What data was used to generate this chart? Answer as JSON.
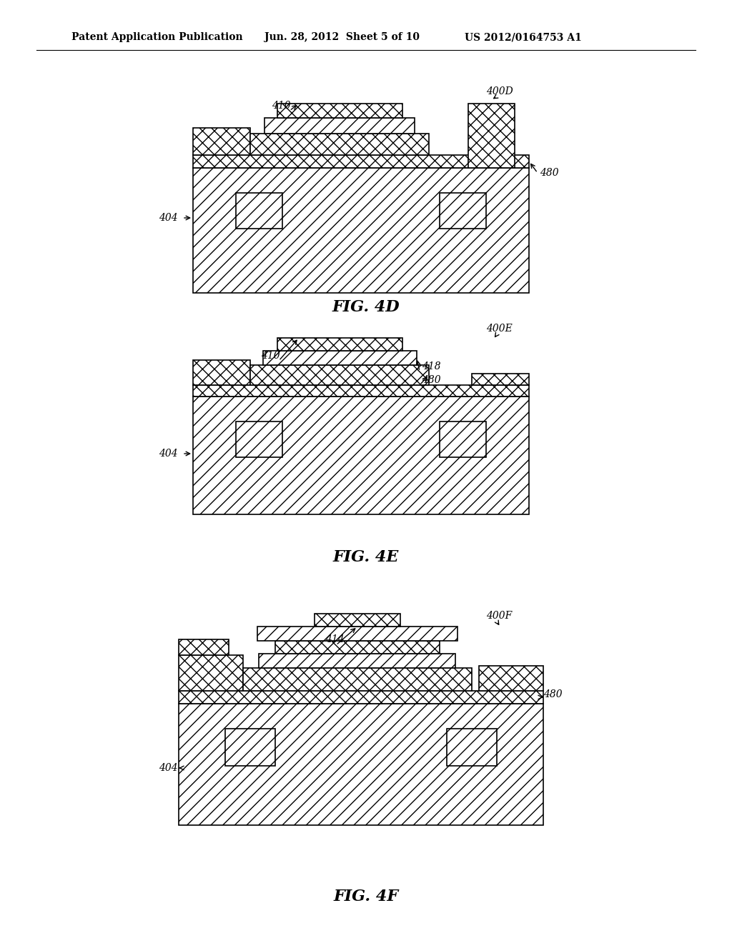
{
  "background_color": "#ffffff",
  "header_left": "Patent Application Publication",
  "header_mid": "Jun. 28, 2012  Sheet 5 of 10",
  "header_right": "US 2012/0164753 A1",
  "fig4d_label": "FIG. 4D",
  "fig4e_label": "FIG. 4E",
  "fig4f_label": "FIG. 4F",
  "label_400D": "400D",
  "label_400E": "400E",
  "label_400F": "400F",
  "label_410_4d": "410",
  "label_410_4e": "410",
  "label_404_4d": "404",
  "label_404_4e": "404",
  "label_404_4f": "404",
  "label_480_4d": "480",
  "label_480_4e": "480",
  "label_480_4f": "480",
  "label_418": "418",
  "label_414": "414"
}
